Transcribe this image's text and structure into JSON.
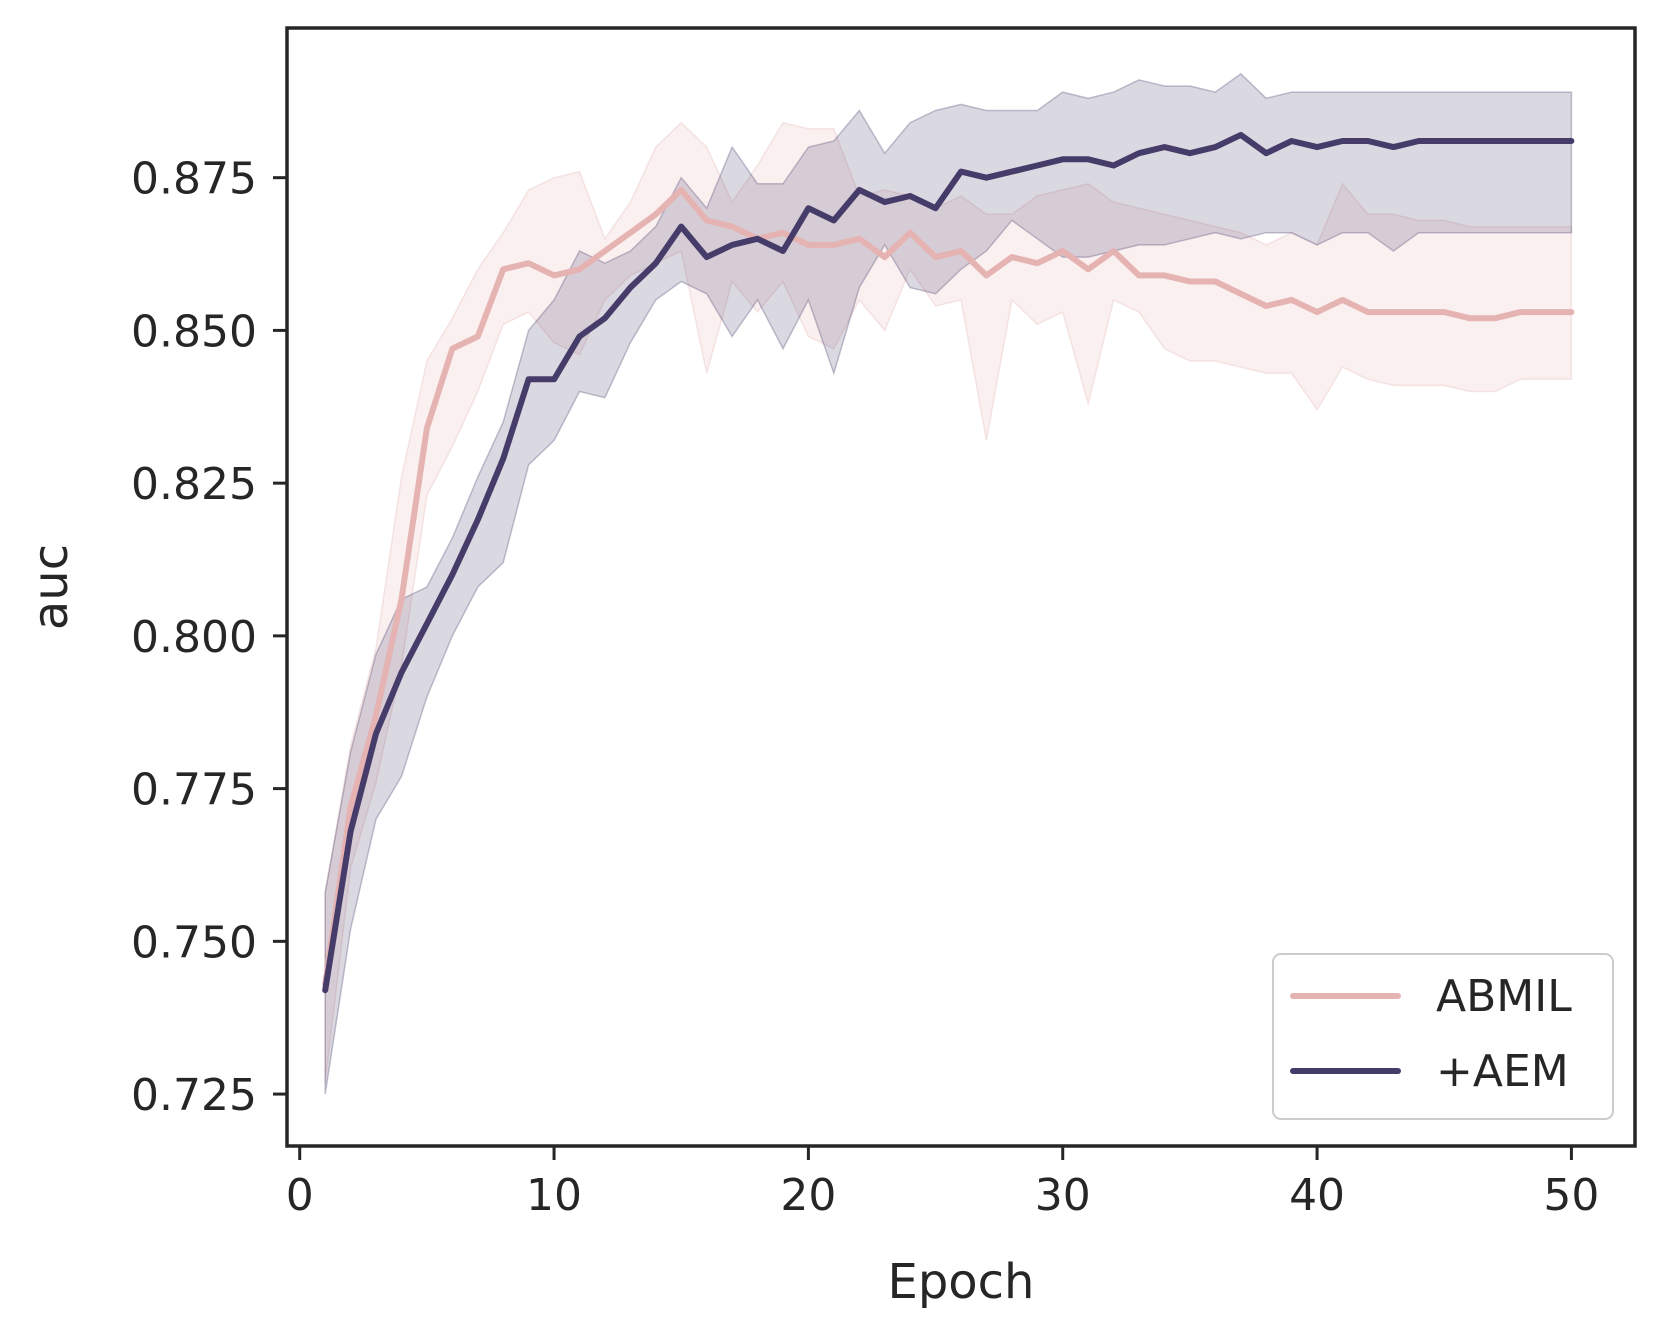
{
  "chart_data": {
    "type": "line",
    "xlabel": "Epoch",
    "ylabel": "auc",
    "xlim": [
      -0.5,
      52.5
    ],
    "ylim": [
      0.7165,
      0.8995
    ],
    "xticks": [
      0,
      10,
      20,
      30,
      40,
      50
    ],
    "yticks": [
      0.725,
      0.75,
      0.775,
      0.8,
      0.825,
      0.85,
      0.875
    ],
    "ytick_labels": [
      "0.725",
      "0.750",
      "0.775",
      "0.800",
      "0.825",
      "0.850",
      "0.875"
    ],
    "legend_position": "bottom-right",
    "grid": false,
    "x": [
      1,
      2,
      3,
      4,
      5,
      6,
      7,
      8,
      9,
      10,
      11,
      12,
      13,
      14,
      15,
      16,
      17,
      18,
      19,
      20,
      21,
      22,
      23,
      24,
      25,
      26,
      27,
      28,
      29,
      30,
      31,
      32,
      33,
      34,
      35,
      36,
      37,
      38,
      39,
      40,
      41,
      42,
      43,
      44,
      45,
      46,
      47,
      48,
      49,
      50
    ],
    "series": [
      {
        "name": "ABMIL",
        "color": "#e6b3b3",
        "values": [
          0.743,
          0.772,
          0.787,
          0.806,
          0.834,
          0.847,
          0.849,
          0.86,
          0.861,
          0.859,
          0.86,
          0.863,
          0.866,
          0.869,
          0.873,
          0.868,
          0.867,
          0.865,
          0.866,
          0.864,
          0.864,
          0.865,
          0.862,
          0.866,
          0.862,
          0.863,
          0.859,
          0.862,
          0.861,
          0.863,
          0.86,
          0.863,
          0.859,
          0.859,
          0.858,
          0.858,
          0.856,
          0.854,
          0.855,
          0.853,
          0.855,
          0.853,
          0.853,
          0.853,
          0.853,
          0.852,
          0.852,
          0.853,
          0.853,
          0.853
        ],
        "lower": [
          0.727,
          0.762,
          0.776,
          0.795,
          0.823,
          0.831,
          0.84,
          0.851,
          0.853,
          0.848,
          0.846,
          0.855,
          0.859,
          0.861,
          0.863,
          0.843,
          0.858,
          0.853,
          0.858,
          0.849,
          0.847,
          0.855,
          0.85,
          0.86,
          0.854,
          0.855,
          0.832,
          0.855,
          0.851,
          0.853,
          0.838,
          0.855,
          0.853,
          0.847,
          0.845,
          0.845,
          0.844,
          0.843,
          0.843,
          0.837,
          0.844,
          0.842,
          0.841,
          0.841,
          0.841,
          0.84,
          0.84,
          0.842,
          0.842,
          0.842
        ],
        "upper": [
          0.758,
          0.782,
          0.798,
          0.826,
          0.845,
          0.852,
          0.86,
          0.866,
          0.873,
          0.875,
          0.876,
          0.865,
          0.871,
          0.88,
          0.884,
          0.88,
          0.871,
          0.877,
          0.884,
          0.883,
          0.883,
          0.872,
          0.873,
          0.872,
          0.87,
          0.872,
          0.869,
          0.869,
          0.872,
          0.873,
          0.874,
          0.871,
          0.87,
          0.869,
          0.868,
          0.867,
          0.866,
          0.864,
          0.866,
          0.864,
          0.874,
          0.869,
          0.869,
          0.868,
          0.868,
          0.867,
          0.867,
          0.867,
          0.867,
          0.867
        ]
      },
      {
        "name": "+AEM",
        "color": "#463c6a",
        "values": [
          0.742,
          0.768,
          0.784,
          0.794,
          0.802,
          0.81,
          0.819,
          0.829,
          0.842,
          0.842,
          0.849,
          0.852,
          0.857,
          0.861,
          0.867,
          0.862,
          0.864,
          0.865,
          0.863,
          0.87,
          0.868,
          0.873,
          0.871,
          0.872,
          0.87,
          0.876,
          0.875,
          0.876,
          0.877,
          0.878,
          0.878,
          0.877,
          0.879,
          0.88,
          0.879,
          0.88,
          0.882,
          0.879,
          0.881,
          0.88,
          0.881,
          0.881,
          0.88,
          0.881,
          0.881,
          0.881,
          0.881,
          0.881,
          0.881,
          0.881
        ],
        "lower": [
          0.725,
          0.752,
          0.77,
          0.777,
          0.79,
          0.8,
          0.808,
          0.812,
          0.828,
          0.832,
          0.84,
          0.839,
          0.848,
          0.855,
          0.858,
          0.856,
          0.849,
          0.855,
          0.847,
          0.855,
          0.843,
          0.857,
          0.864,
          0.857,
          0.856,
          0.86,
          0.863,
          0.868,
          0.865,
          0.862,
          0.862,
          0.863,
          0.864,
          0.864,
          0.865,
          0.866,
          0.865,
          0.866,
          0.866,
          0.864,
          0.866,
          0.866,
          0.863,
          0.866,
          0.866,
          0.866,
          0.866,
          0.866,
          0.866,
          0.866
        ],
        "upper": [
          0.758,
          0.781,
          0.797,
          0.806,
          0.808,
          0.816,
          0.826,
          0.835,
          0.85,
          0.855,
          0.863,
          0.861,
          0.863,
          0.867,
          0.875,
          0.87,
          0.88,
          0.874,
          0.874,
          0.88,
          0.881,
          0.886,
          0.879,
          0.884,
          0.886,
          0.887,
          0.886,
          0.886,
          0.886,
          0.889,
          0.888,
          0.889,
          0.891,
          0.89,
          0.89,
          0.889,
          0.892,
          0.888,
          0.889,
          0.889,
          0.889,
          0.889,
          0.889,
          0.889,
          0.889,
          0.889,
          0.889,
          0.889,
          0.889,
          0.889
        ]
      }
    ]
  }
}
